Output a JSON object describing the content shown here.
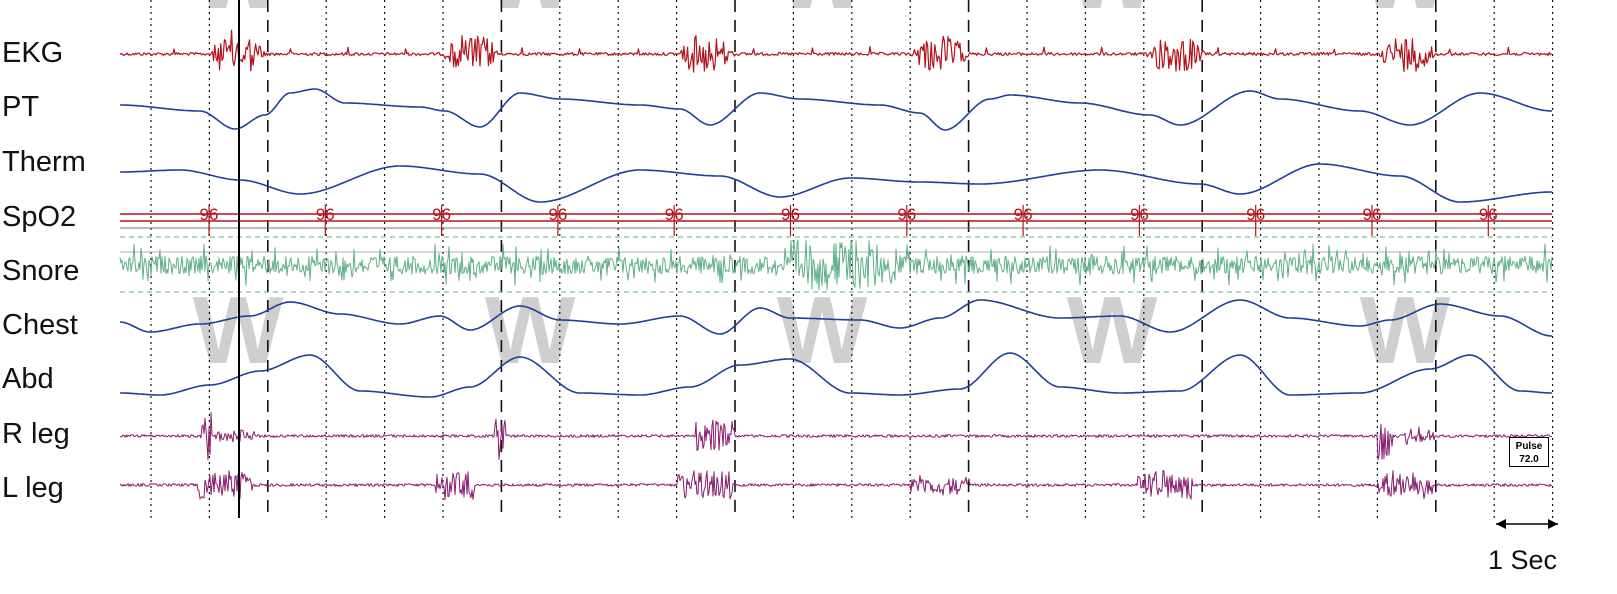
{
  "chart_data": {
    "type": "line",
    "channels": [
      {
        "name": "EKG",
        "color": "#b5121b"
      },
      {
        "name": "PT",
        "color": "#1f3f9a"
      },
      {
        "name": "Therm",
        "color": "#1f3f9a"
      },
      {
        "name": "SpO2",
        "color": "#b5121b"
      },
      {
        "name": "Snore",
        "color": "#5fb08a"
      },
      {
        "name": "Chest",
        "color": "#1f3f9a"
      },
      {
        "name": "Abd",
        "color": "#1f3f9a"
      },
      {
        "name": "R leg",
        "color": "#8a1a6e"
      },
      {
        "name": "L leg",
        "color": "#8a1a6e"
      }
    ],
    "spo2_values": [
      "96",
      "96",
      "96",
      "96",
      "96",
      "96",
      "96",
      "96",
      "96",
      "96",
      "96",
      "96"
    ],
    "watermark_letter": "W",
    "pulse": {
      "label": "Pulse",
      "value": "72.0"
    },
    "time_scale": {
      "label": "1 Sec"
    },
    "cursor_visible": true,
    "grid": {
      "dotted_every_sec": 1,
      "dashed_every_sec": 4
    }
  }
}
